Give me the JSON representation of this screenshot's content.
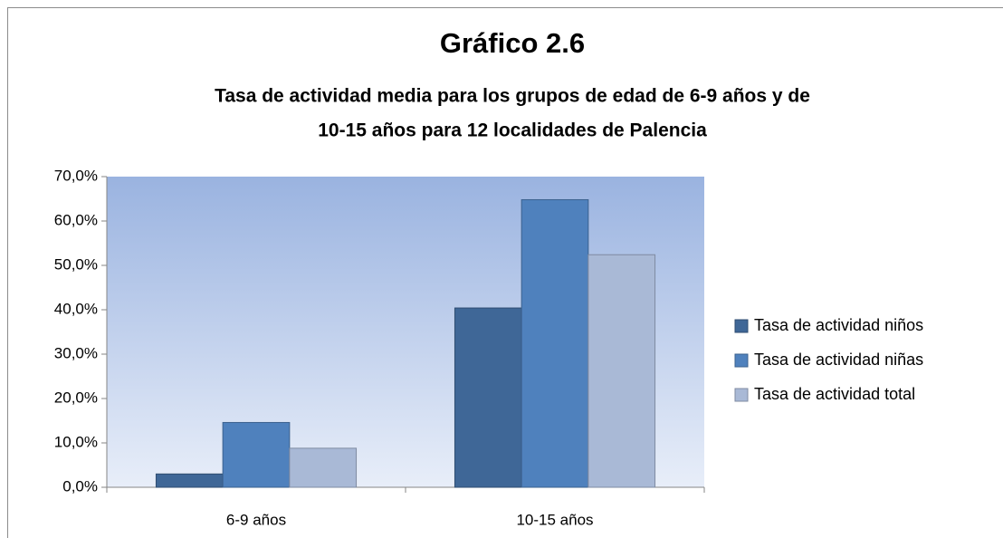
{
  "chart_data": {
    "type": "bar",
    "title": "Gráfico 2.6",
    "subtitle": [
      "Tasa de actividad media para los grupos de edad de 6-9 años y de",
      "10-15 años para 12 localidades de Palencia"
    ],
    "categories": [
      "6-9 años",
      "10-15 años"
    ],
    "series": [
      {
        "name": "Tasa de actividad niños",
        "color": "#3f6797",
        "values": [
          3.0,
          40.4
        ]
      },
      {
        "name": "Tasa de actividad niñas",
        "color": "#4f81bd",
        "values": [
          14.6,
          64.8
        ]
      },
      {
        "name": "Tasa de actividad total",
        "color": "#a9b9d6",
        "values": [
          8.8,
          52.4
        ]
      }
    ],
    "ylim": [
      0,
      70
    ],
    "yticks": [
      {
        "value": 0,
        "label": "0,0%"
      },
      {
        "value": 10,
        "label": "10,0%"
      },
      {
        "value": 20,
        "label": "20,0%"
      },
      {
        "value": 30,
        "label": "30,0%"
      },
      {
        "value": 40,
        "label": "40,0%"
      },
      {
        "value": 50,
        "label": "50,0%"
      },
      {
        "value": 60,
        "label": "60,0%"
      },
      {
        "value": 70,
        "label": "70,0%"
      }
    ],
    "legend": "right"
  }
}
